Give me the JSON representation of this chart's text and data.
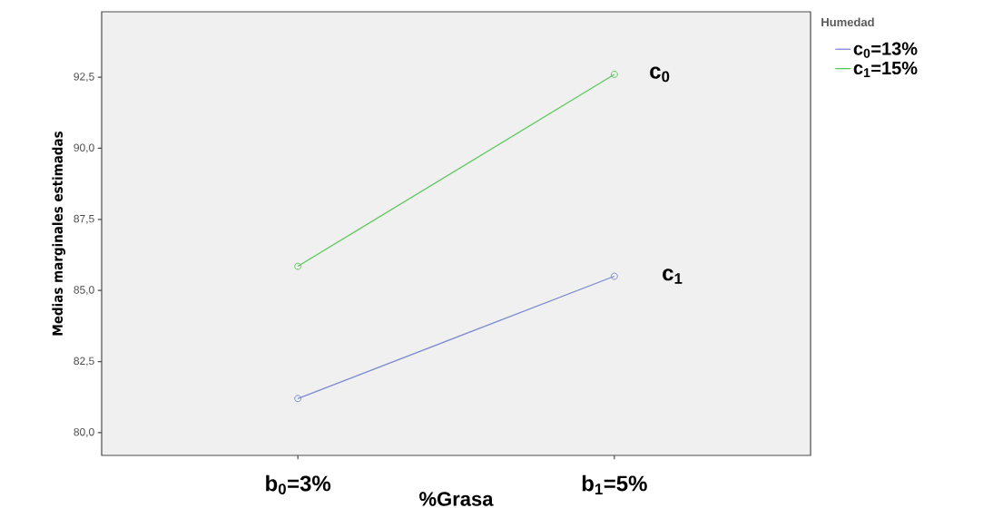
{
  "chart_data": {
    "type": "line",
    "xlabel": "%Grasa",
    "ylabel": "Medias marginales estimadas",
    "legend_title": "Humedad",
    "categories": [
      "b$_{0}$=3%",
      "b$_{1}$=5%"
    ],
    "series": [
      {
        "name": "c$_{0}$=13%",
        "color": "#7b8bd0",
        "values": [
          81.2,
          85.5
        ]
      },
      {
        "name": "c$_{1}$=15%",
        "color": "#5cc85c",
        "values": [
          85.85,
          92.6
        ]
      }
    ],
    "ylim": [
      79.2,
      94.8
    ],
    "yticks": [
      {
        "value": 80,
        "label": "80,0"
      },
      {
        "value": 82.5,
        "label": "82,5"
      },
      {
        "value": 85,
        "label": "85,0"
      },
      {
        "value": 87.5,
        "label": "87,5"
      },
      {
        "value": 90,
        "label": "90,0"
      },
      {
        "value": 92.5,
        "label": "92,5"
      }
    ],
    "annotations": [
      {
        "text": "c$_{0}$",
        "x": "b$_{1}$=5%",
        "y": 92.6
      },
      {
        "text": "c$_{1}$",
        "x": "b$_{1}$=5%",
        "y": 85.5
      }
    ],
    "marker": "circle",
    "grid": false,
    "legend": "top right"
  }
}
